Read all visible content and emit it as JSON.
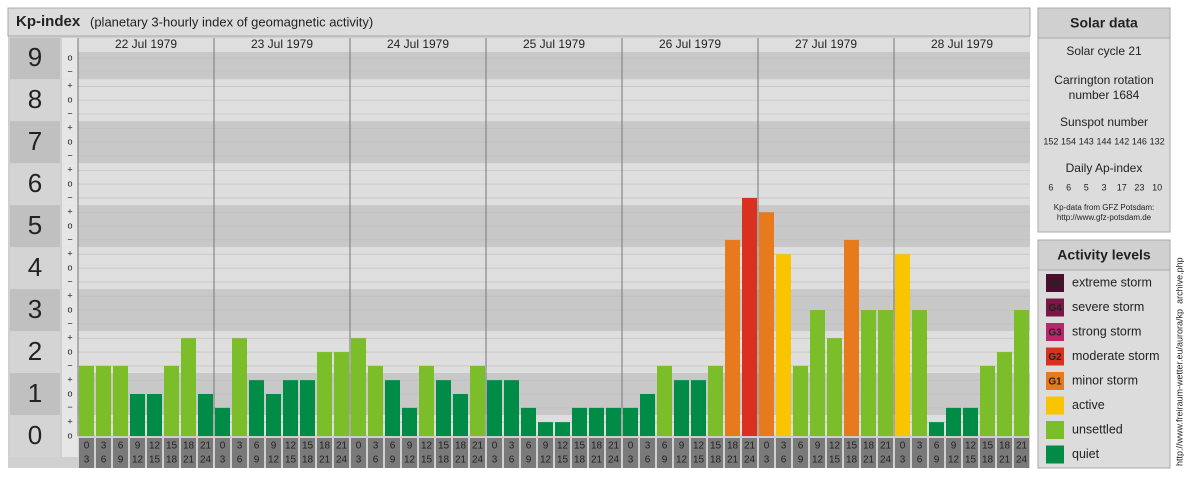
{
  "chart_data": {
    "type": "bar",
    "title": "Kp-index",
    "subtitle": "(planetary 3-hourly index of geomagnetic activity)",
    "ylim": [
      0,
      9.48
    ],
    "yticks": [
      0,
      1,
      2,
      3,
      4,
      5,
      6,
      7,
      8,
      9
    ],
    "minor_yticks": [
      {
        "value": 0,
        "label": "o"
      },
      {
        "value": 0.33,
        "label": "+"
      },
      {
        "value": 0.67,
        "label": "−"
      },
      {
        "value": 1,
        "label": "o"
      },
      {
        "value": 1.33,
        "label": "+"
      },
      {
        "value": 1.67,
        "label": "−"
      },
      {
        "value": 2,
        "label": "o"
      },
      {
        "value": 2.33,
        "label": "+"
      },
      {
        "value": 2.67,
        "label": "−"
      },
      {
        "value": 3,
        "label": "o"
      },
      {
        "value": 3.33,
        "label": "+"
      },
      {
        "value": 3.67,
        "label": "−"
      },
      {
        "value": 4,
        "label": "o"
      },
      {
        "value": 4.33,
        "label": "+"
      },
      {
        "value": 4.67,
        "label": "−"
      },
      {
        "value": 5,
        "label": "o"
      },
      {
        "value": 5.33,
        "label": "+"
      },
      {
        "value": 5.67,
        "label": "−"
      },
      {
        "value": 6,
        "label": "o"
      },
      {
        "value": 6.33,
        "label": "+"
      },
      {
        "value": 6.67,
        "label": "−"
      },
      {
        "value": 7,
        "label": "o"
      },
      {
        "value": 7.33,
        "label": "+"
      },
      {
        "value": 7.67,
        "label": "−"
      },
      {
        "value": 8,
        "label": "o"
      },
      {
        "value": 8.33,
        "label": "+"
      },
      {
        "value": 8.67,
        "label": "−"
      },
      {
        "value": 9,
        "label": "o"
      }
    ],
    "slots": [
      {
        "from": "0",
        "to": "3"
      },
      {
        "from": "3",
        "to": "6"
      },
      {
        "from": "6",
        "to": "9"
      },
      {
        "from": "9",
        "to": "12"
      },
      {
        "from": "12",
        "to": "15"
      },
      {
        "from": "15",
        "to": "18"
      },
      {
        "from": "18",
        "to": "21"
      },
      {
        "from": "21",
        "to": "24"
      }
    ],
    "days": [
      {
        "date": "22 Jul 1979",
        "values": [
          1.67,
          1.67,
          1.67,
          1,
          1,
          1.67,
          2.33,
          1
        ],
        "levels": [
          6,
          6,
          6,
          7,
          7,
          6,
          6,
          7
        ]
      },
      {
        "date": "23 Jul 1979",
        "values": [
          0.67,
          2.33,
          1.33,
          1,
          1.33,
          1.33,
          2,
          2
        ],
        "levels": [
          7,
          6,
          7,
          7,
          7,
          7,
          6,
          6
        ]
      },
      {
        "date": "24 Jul 1979",
        "values": [
          2.33,
          1.67,
          1.33,
          0.67,
          1.67,
          1.33,
          1,
          1.67
        ],
        "levels": [
          6,
          6,
          7,
          7,
          6,
          7,
          7,
          6
        ]
      },
      {
        "date": "25 Jul 1979",
        "values": [
          1.33,
          1.33,
          0.67,
          0.33,
          0.33,
          0.67,
          0.67,
          0.67
        ],
        "levels": [
          7,
          7,
          7,
          7,
          7,
          7,
          7,
          7
        ]
      },
      {
        "date": "26 Jul 1979",
        "values": [
          0.67,
          1,
          1.67,
          1.33,
          1.33,
          1.67,
          4.67,
          5.67
        ],
        "levels": [
          7,
          7,
          6,
          7,
          7,
          6,
          4,
          3
        ]
      },
      {
        "date": "27 Jul 1979",
        "values": [
          5.33,
          4.33,
          1.67,
          3,
          2.33,
          4.67,
          3,
          3
        ],
        "levels": [
          4,
          5,
          6,
          6,
          6,
          4,
          6,
          6
        ]
      },
      {
        "date": "28 Jul 1979",
        "values": [
          4.33,
          3,
          0.33,
          0.67,
          0.67,
          1.67,
          2,
          3
        ],
        "levels": [
          5,
          6,
          7,
          7,
          7,
          6,
          6,
          6
        ]
      }
    ],
    "activity_levels": {
      "title": "Activity levels",
      "items": [
        {
          "badge": "G5",
          "label": "extreme storm",
          "color": "#4a0f2e"
        },
        {
          "badge": "G4",
          "label": "severe storm",
          "color": "#7a1746"
        },
        {
          "badge": "G3",
          "label": "strong storm",
          "color": "#b8276a"
        },
        {
          "badge": "G2",
          "label": "moderate storm",
          "color": "#d9301f"
        },
        {
          "badge": "G1",
          "label": "minor storm",
          "color": "#e67a1c"
        },
        {
          "label": "active",
          "color": "#f8c500"
        },
        {
          "label": "unsettled",
          "color": "#7cbd2a"
        },
        {
          "label": "quiet",
          "color": "#008c47"
        }
      ]
    }
  },
  "solar_data": {
    "title": "Solar data",
    "cycle": "Solar cycle 21",
    "carrington_1": "Carrington rotation",
    "carrington_2": "number 1684",
    "sunspot_title": "Sunspot number",
    "sunspot_numbers": [
      152,
      154,
      143,
      144,
      142,
      146,
      132
    ],
    "ap_title": "Daily Ap-index",
    "ap_values": [
      6,
      6,
      5,
      3,
      17,
      23,
      10
    ],
    "source": "Kp-data from GFZ Potsdam:",
    "source_url": "http://www.gfz-potsdam.de"
  },
  "side_url": "http://www.freiraum-wetter.eu/aurora/kp_archive.php"
}
